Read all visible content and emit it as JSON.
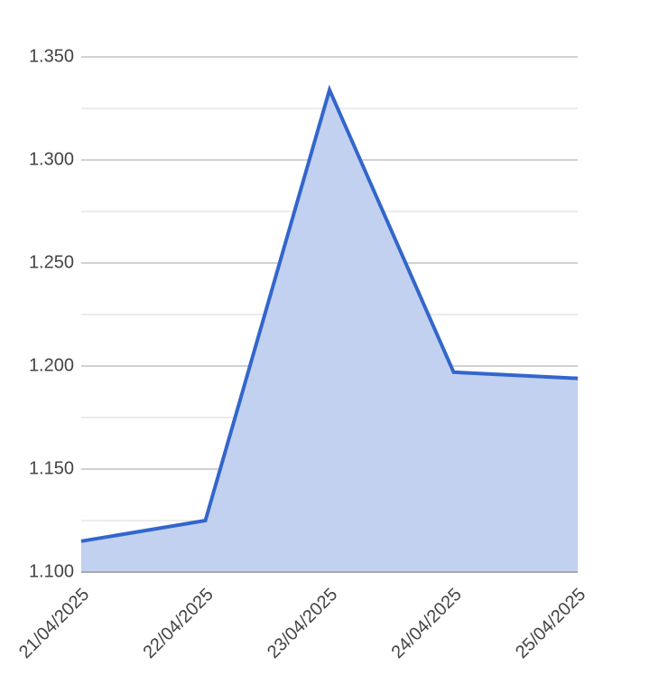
{
  "chart_data": {
    "type": "area",
    "categories": [
      "21/04/2025",
      "22/04/2025",
      "23/04/2025",
      "24/04/2025",
      "25/04/2025"
    ],
    "values": [
      1.115,
      1.125,
      1.334,
      1.197,
      1.194
    ],
    "color": "#3366cc",
    "fill": "#c3d1f0",
    "ylim": [
      1.1,
      1.35
    ],
    "yticks": [
      {
        "value": 1.1,
        "label": "1.100"
      },
      {
        "value": 1.15,
        "label": "1.150"
      },
      {
        "value": 1.2,
        "label": "1.200"
      },
      {
        "value": 1.25,
        "label": "1.250"
      },
      {
        "value": 1.3,
        "label": "1.300"
      },
      {
        "value": 1.35,
        "label": "1.350"
      }
    ],
    "minor_yticks": [
      1.125,
      1.175,
      1.225,
      1.275,
      1.325
    ],
    "grid": true
  }
}
